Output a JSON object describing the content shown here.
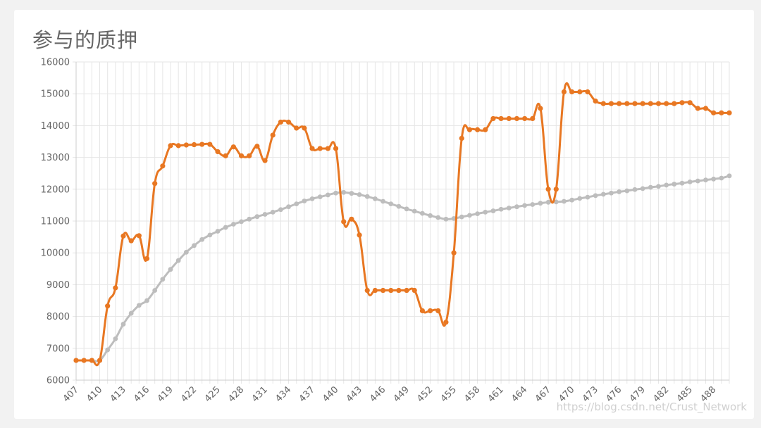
{
  "page": {
    "title": "参与的质押",
    "watermark": "https://blog.csdn.net/Crust_Network"
  },
  "colors": {
    "series_orange": "#e87722",
    "series_gray": "#bdbdbd",
    "grid": "#e6e6e6",
    "tick_text": "#666666"
  },
  "chart_data": {
    "type": "line",
    "title": "参与的质押",
    "xlabel": "",
    "ylabel": "",
    "grid": true,
    "legend": "none",
    "ylim": [
      6000,
      16000
    ],
    "yticks": [
      6000,
      7000,
      8000,
      9000,
      10000,
      11000,
      12000,
      13000,
      14000,
      15000,
      16000
    ],
    "xlim": [
      407,
      490
    ],
    "xticks": [
      407,
      410,
      413,
      416,
      419,
      422,
      425,
      428,
      431,
      434,
      437,
      440,
      443,
      446,
      449,
      452,
      455,
      458,
      461,
      464,
      467,
      470,
      473,
      476,
      479,
      482,
      485,
      488
    ],
    "x": [
      407,
      408,
      409,
      410,
      411,
      412,
      413,
      414,
      415,
      416,
      417,
      418,
      419,
      420,
      421,
      422,
      423,
      424,
      425,
      426,
      427,
      428,
      429,
      430,
      431,
      432,
      433,
      434,
      435,
      436,
      437,
      438,
      439,
      440,
      441,
      442,
      443,
      444,
      445,
      446,
      447,
      448,
      449,
      450,
      451,
      452,
      453,
      454,
      455,
      456,
      457,
      458,
      459,
      460,
      461,
      462,
      463,
      464,
      465,
      466,
      467,
      468,
      469,
      470,
      471,
      472,
      473,
      474,
      475,
      476,
      477,
      478,
      479,
      480,
      481,
      482,
      483,
      484,
      485,
      486,
      487,
      488,
      489,
      490
    ],
    "series": [
      {
        "values": [
          6620,
          6620,
          6620,
          6620,
          8330,
          8900,
          10530,
          10380,
          10540,
          9820,
          12180,
          12730,
          13370,
          13370,
          13390,
          13400,
          13410,
          13410,
          13180,
          13050,
          13330,
          13050,
          13050,
          13350,
          12900,
          13700,
          14110,
          14110,
          13920,
          13920,
          13280,
          13280,
          13280,
          13280,
          10980,
          11060,
          10560,
          8820,
          8820,
          8820,
          8820,
          8820,
          8820,
          8820,
          8180,
          8180,
          8180,
          7820,
          10000,
          13600,
          13870,
          13870,
          13870,
          14220,
          14220,
          14220,
          14220,
          14220,
          14220,
          14540,
          12000,
          12000,
          15060,
          15060,
          15060,
          15060,
          14770,
          14690,
          14690,
          14690,
          14690,
          14690,
          14690,
          14690,
          14690,
          14690,
          14690,
          14720,
          14720,
          14540,
          14540,
          14400,
          14400,
          14400
        ]
      },
      {
        "values": [
          6620,
          6620,
          6620,
          6620,
          6950,
          7300,
          7760,
          8100,
          8350,
          8500,
          8820,
          9170,
          9480,
          9760,
          10020,
          10230,
          10420,
          10560,
          10680,
          10800,
          10900,
          10980,
          11060,
          11140,
          11210,
          11280,
          11360,
          11450,
          11540,
          11630,
          11700,
          11760,
          11820,
          11880,
          11900,
          11870,
          11830,
          11770,
          11700,
          11620,
          11540,
          11460,
          11380,
          11310,
          11240,
          11170,
          11110,
          11060,
          11080,
          11130,
          11180,
          11230,
          11280,
          11320,
          11370,
          11410,
          11450,
          11490,
          11520,
          11560,
          11590,
          11600,
          11620,
          11660,
          11710,
          11750,
          11800,
          11840,
          11880,
          11920,
          11950,
          11990,
          12020,
          12060,
          12090,
          12130,
          12160,
          12190,
          12230,
          12260,
          12290,
          12320,
          12350,
          12420
        ]
      }
    ]
  }
}
